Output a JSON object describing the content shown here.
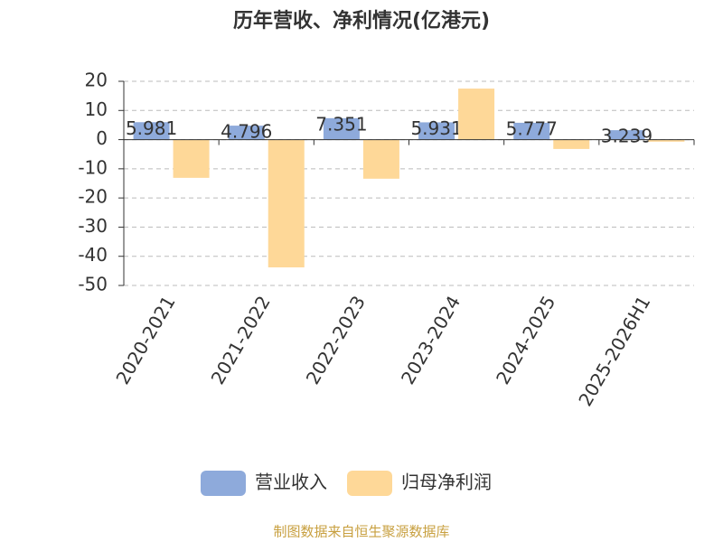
{
  "chart_data": {
    "type": "bar",
    "title": "历年营收、净利情况(亿港元)",
    "categories": [
      "2020-2021",
      "2021-2022",
      "2022-2023",
      "2023-2024",
      "2024-2025",
      "2025-2026H1"
    ],
    "series": [
      {
        "name": "营业收入",
        "color": "#8eaadb",
        "values": [
          5.981,
          4.796,
          7.351,
          5.931,
          5.777,
          3.239
        ]
      },
      {
        "name": "归母净利润",
        "color": "#fed898",
        "values": [
          -13.1,
          -43.8,
          -13.4,
          17.5,
          -3.2,
          -0.7
        ]
      }
    ],
    "ylim": [
      -50,
      20
    ],
    "yticks": [
      -50,
      -40,
      -30,
      -20,
      -10,
      0,
      10,
      20
    ],
    "grid": true,
    "source": "制图数据来自恒生聚源数据库"
  }
}
